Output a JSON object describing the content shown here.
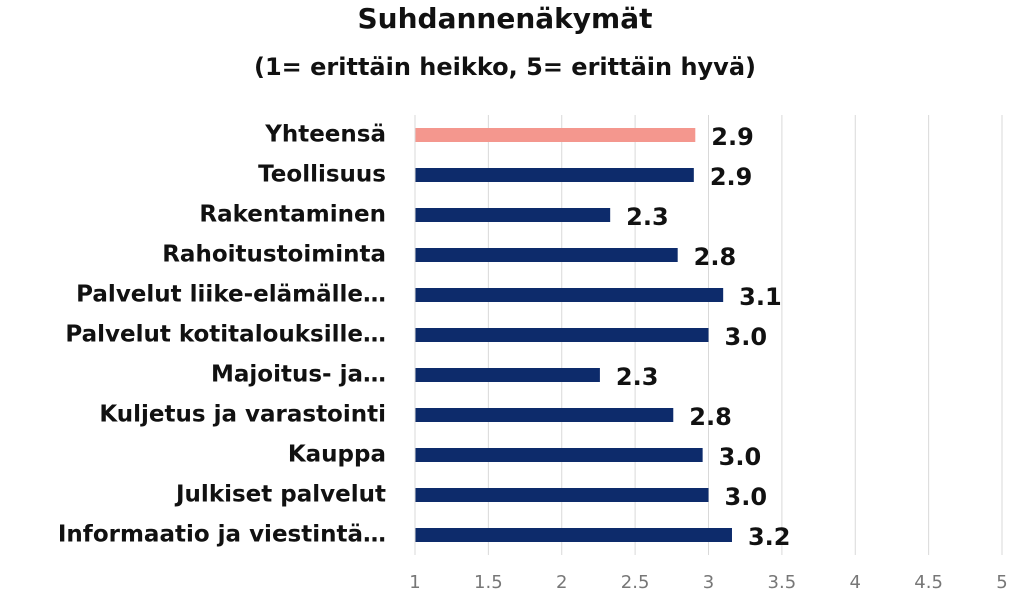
{
  "chart_data": {
    "type": "barh",
    "title": "Suhdannenäkymät",
    "subtitle": "(1= erittäin heikko, 5= erittäin hyvä)",
    "categories": [
      "Yhteensä",
      "Teollisuus",
      "Rakentaminen",
      "Rahoitustoiminta",
      "Palvelut liike-elämälle…",
      "Palvelut kotitalouksille…",
      "Majoitus- ja…",
      "Kuljetus ja varastointi",
      "Kauppa",
      "Julkiset palvelut",
      "Informaatio ja viestintä…"
    ],
    "values": [
      2.91,
      2.9,
      2.33,
      2.79,
      3.1,
      3.0,
      2.26,
      2.76,
      2.96,
      3.0,
      3.16
    ],
    "value_labels": [
      "2.9",
      "2.9",
      "2.3",
      "2.8",
      "3.1",
      "3.0",
      "2.3",
      "2.8",
      "3.0",
      "3.0",
      "3.2"
    ],
    "colors": [
      "#f4978e",
      "#0d2b6b",
      "#0d2b6b",
      "#0d2b6b",
      "#0d2b6b",
      "#0d2b6b",
      "#0d2b6b",
      "#0d2b6b",
      "#0d2b6b",
      "#0d2b6b",
      "#0d2b6b"
    ],
    "xlim": [
      1,
      5
    ],
    "xticks": [
      1,
      1.5,
      2,
      2.5,
      3,
      3.5,
      4,
      4.5,
      5
    ],
    "grid": true
  }
}
